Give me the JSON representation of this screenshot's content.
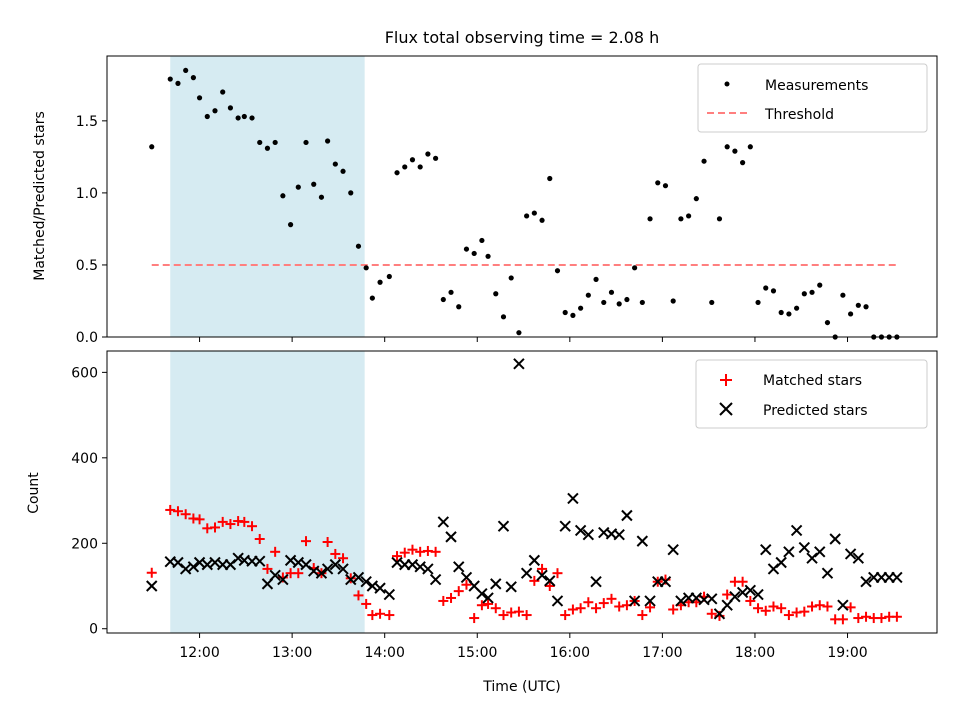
{
  "chart_data": [
    {
      "type": "scatter",
      "title": "Flux total observing time = 2.08 h",
      "xlabel": "",
      "ylabel": "Matched/Predicted stars",
      "xlim": [
        "11:00",
        "19:58"
      ],
      "ylim": [
        0,
        1.95
      ],
      "yticks": [
        0.0,
        0.5,
        1.0,
        1.5
      ],
      "ytick_labels": [
        "0.0",
        "0.5",
        "1.0",
        "1.5"
      ],
      "xticks": [
        "12:00",
        "13:00",
        "14:00",
        "15:00",
        "16:00",
        "17:00",
        "18:00",
        "19:00"
      ],
      "shaded_span": [
        "11:41",
        "13:47"
      ],
      "shaded_color": "#add8e6",
      "legend_position": "upper right",
      "series": [
        {
          "name": "Measurements",
          "marker": "dot",
          "color": "#000000",
          "x": [
            "11:29",
            "11:41",
            "11:46",
            "11:51",
            "11:56",
            "12:00",
            "12:05",
            "12:10",
            "12:15",
            "12:20",
            "12:25",
            "12:29",
            "12:34",
            "12:39",
            "12:44",
            "12:49",
            "12:54",
            "12:59",
            "13:04",
            "13:09",
            "13:14",
            "13:19",
            "13:23",
            "13:28",
            "13:33",
            "13:38",
            "13:43",
            "13:48",
            "13:52",
            "13:57",
            "14:03",
            "14:08",
            "14:13",
            "14:18",
            "14:23",
            "14:28",
            "14:33",
            "14:38",
            "14:43",
            "14:48",
            "14:53",
            "14:58",
            "15:03",
            "15:07",
            "15:12",
            "15:17",
            "15:22",
            "15:27",
            "15:32",
            "15:37",
            "15:42",
            "15:47",
            "15:52",
            "15:57",
            "16:02",
            "16:07",
            "16:12",
            "16:17",
            "16:22",
            "16:27",
            "16:32",
            "16:37",
            "16:42",
            "16:47",
            "16:52",
            "16:57",
            "17:02",
            "17:07",
            "17:12",
            "17:17",
            "17:22",
            "17:27",
            "17:32",
            "17:37",
            "17:42",
            "17:47",
            "17:52",
            "17:57",
            "18:02",
            "18:07",
            "18:12",
            "18:17",
            "18:22",
            "18:27",
            "18:32",
            "18:37",
            "18:42",
            "18:47",
            "18:52",
            "18:57",
            "19:02",
            "19:07",
            "19:12",
            "19:17",
            "19:22",
            "19:27",
            "19:32"
          ],
          "y": [
            1.32,
            1.79,
            1.76,
            1.85,
            1.8,
            1.66,
            1.53,
            1.57,
            1.7,
            1.59,
            1.52,
            1.53,
            1.52,
            1.35,
            1.31,
            1.35,
            0.98,
            0.78,
            1.04,
            1.35,
            1.06,
            0.97,
            1.36,
            1.2,
            1.15,
            1.0,
            0.63,
            0.48,
            0.27,
            0.38,
            0.42,
            1.14,
            1.18,
            1.23,
            1.18,
            1.27,
            1.24,
            0.26,
            0.31,
            0.21,
            0.61,
            0.58,
            0.67,
            0.56,
            0.3,
            0.14,
            0.41,
            0.03,
            0.84,
            0.86,
            0.81,
            1.1,
            0.46,
            0.17,
            0.15,
            0.2,
            0.29,
            0.4,
            0.24,
            0.31,
            0.23,
            0.26,
            0.48,
            0.24,
            0.82,
            1.07,
            1.05,
            0.25,
            0.82,
            0.84,
            0.96,
            1.22,
            0.24,
            0.82,
            1.32,
            1.29,
            1.21,
            1.32,
            0.24,
            0.34,
            0.32,
            0.17,
            0.16,
            0.2,
            0.3,
            0.31,
            0.36,
            0.1,
            0.0,
            0.29,
            0.16,
            0.22,
            0.21,
            0.0,
            0.0,
            0.0,
            0.0
          ]
        },
        {
          "name": "Threshold",
          "marker": "dashed-line",
          "color": "#ff7f7f",
          "x": [
            "11:29",
            "19:32"
          ],
          "y": [
            0.5,
            0.5
          ]
        }
      ]
    },
    {
      "type": "scatter",
      "title": "",
      "xlabel": "Time (UTC)",
      "ylabel": "Count",
      "xlim": [
        "11:00",
        "19:58"
      ],
      "ylim": [
        -10,
        650
      ],
      "yticks": [
        0,
        200,
        400,
        600
      ],
      "ytick_labels": [
        "0",
        "200",
        "400",
        "600"
      ],
      "xticks": [
        "12:00",
        "13:00",
        "14:00",
        "15:00",
        "16:00",
        "17:00",
        "18:00",
        "19:00"
      ],
      "xtick_labels": [
        "12:00",
        "13:00",
        "14:00",
        "15:00",
        "16:00",
        "17:00",
        "18:00",
        "19:00"
      ],
      "shaded_span": [
        "11:41",
        "13:47"
      ],
      "shaded_color": "#add8e6",
      "legend_position": "upper right",
      "series": [
        {
          "name": "Matched stars",
          "marker": "plus",
          "color": "#ff0000",
          "x": [
            "11:29",
            "11:41",
            "11:46",
            "11:51",
            "11:56",
            "12:00",
            "12:05",
            "12:10",
            "12:15",
            "12:20",
            "12:25",
            "12:29",
            "12:34",
            "12:39",
            "12:44",
            "12:49",
            "12:54",
            "12:59",
            "13:04",
            "13:09",
            "13:14",
            "13:19",
            "13:23",
            "13:28",
            "13:33",
            "13:38",
            "13:43",
            "13:48",
            "13:52",
            "13:57",
            "14:03",
            "14:08",
            "14:13",
            "14:18",
            "14:23",
            "14:28",
            "14:33",
            "14:38",
            "14:43",
            "14:48",
            "14:53",
            "14:58",
            "15:03",
            "15:07",
            "15:12",
            "15:17",
            "15:22",
            "15:27",
            "15:32",
            "15:37",
            "15:42",
            "15:47",
            "15:52",
            "15:57",
            "16:02",
            "16:07",
            "16:12",
            "16:17",
            "16:22",
            "16:27",
            "16:32",
            "16:37",
            "16:42",
            "16:47",
            "16:52",
            "16:57",
            "17:02",
            "17:07",
            "17:12",
            "17:17",
            "17:22",
            "17:27",
            "17:32",
            "17:37",
            "17:42",
            "17:47",
            "17:52",
            "17:57",
            "18:02",
            "18:07",
            "18:12",
            "18:17",
            "18:22",
            "18:27",
            "18:32",
            "18:37",
            "18:42",
            "18:47",
            "18:52",
            "18:57",
            "19:02",
            "19:07",
            "19:12",
            "19:17",
            "19:22",
            "19:27",
            "19:32"
          ],
          "y": [
            131,
            278,
            275,
            268,
            258,
            256,
            235,
            237,
            250,
            245,
            252,
            250,
            240,
            210,
            140,
            180,
            120,
            130,
            130,
            205,
            142,
            130,
            203,
            175,
            165,
            118,
            78,
            58,
            32,
            35,
            32,
            170,
            178,
            185,
            180,
            182,
            180,
            65,
            72,
            88,
            103,
            25,
            55,
            58,
            48,
            32,
            38,
            40,
            32,
            112,
            140,
            100,
            130,
            32,
            45,
            48,
            62,
            48,
            60,
            70,
            52,
            55,
            65,
            32,
            50,
            110,
            115,
            45,
            55,
            62,
            62,
            75,
            35,
            30,
            80,
            110,
            110,
            65,
            48,
            42,
            52,
            48,
            32,
            38,
            40,
            52,
            55,
            52,
            22,
            22,
            50,
            25,
            28,
            25,
            25,
            28,
            28
          ]
        },
        {
          "name": "Predicted stars",
          "marker": "x",
          "color": "#000000",
          "x": [
            "11:29",
            "11:41",
            "11:46",
            "11:51",
            "11:56",
            "12:00",
            "12:05",
            "12:10",
            "12:15",
            "12:20",
            "12:25",
            "12:29",
            "12:34",
            "12:39",
            "12:44",
            "12:49",
            "12:54",
            "12:59",
            "13:04",
            "13:09",
            "13:14",
            "13:19",
            "13:23",
            "13:28",
            "13:33",
            "13:38",
            "13:43",
            "13:48",
            "13:52",
            "13:57",
            "14:03",
            "14:08",
            "14:13",
            "14:18",
            "14:23",
            "14:28",
            "14:33",
            "14:38",
            "14:43",
            "14:48",
            "14:53",
            "14:58",
            "15:03",
            "15:07",
            "15:12",
            "15:17",
            "15:22",
            "15:27",
            "15:32",
            "15:37",
            "15:42",
            "15:47",
            "15:52",
            "15:57",
            "16:02",
            "16:07",
            "16:12",
            "16:17",
            "16:22",
            "16:27",
            "16:32",
            "16:37",
            "16:42",
            "16:47",
            "16:52",
            "16:57",
            "17:02",
            "17:07",
            "17:12",
            "17:17",
            "17:22",
            "17:27",
            "17:32",
            "17:37",
            "17:42",
            "17:47",
            "17:52",
            "17:57",
            "18:02",
            "18:07",
            "18:12",
            "18:17",
            "18:22",
            "18:27",
            "18:32",
            "18:37",
            "18:42",
            "18:47",
            "18:52",
            "18:57",
            "19:02",
            "19:07",
            "19:12",
            "19:17",
            "19:22",
            "19:27",
            "19:32"
          ],
          "y": [
            100,
            157,
            155,
            140,
            145,
            155,
            150,
            155,
            150,
            150,
            165,
            160,
            158,
            158,
            105,
            125,
            115,
            160,
            155,
            150,
            135,
            130,
            140,
            150,
            140,
            115,
            120,
            110,
            100,
            95,
            80,
            155,
            150,
            150,
            145,
            140,
            115,
            250,
            215,
            145,
            120,
            100,
            82,
            72,
            105,
            240,
            98,
            620,
            130,
            160,
            125,
            112,
            65,
            240,
            305,
            230,
            220,
            110,
            225,
            222,
            220,
            265,
            65,
            205,
            65,
            110,
            110,
            185,
            65,
            72,
            72,
            68,
            70,
            35,
            55,
            75,
            85,
            90,
            80,
            185,
            140,
            155,
            180,
            230,
            190,
            165,
            180,
            130,
            210,
            55,
            175,
            165,
            110,
            120,
            120,
            120,
            120
          ]
        }
      ]
    }
  ],
  "legends": {
    "top": {
      "measurements": "Measurements",
      "threshold": "Threshold"
    },
    "bottom": {
      "matched": "Matched stars",
      "predicted": "Predicted stars"
    }
  }
}
